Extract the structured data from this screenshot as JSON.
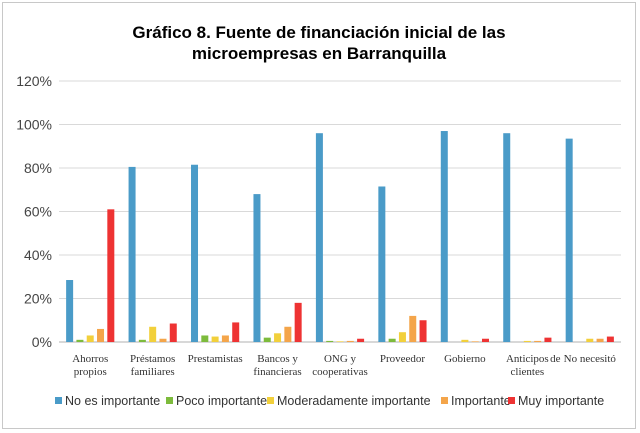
{
  "chart_data": {
    "type": "bar",
    "title_lines": [
      "Gráfico 8. Fuente de financiación inicial de las",
      "microempresas en Barranquilla"
    ],
    "categories": [
      [
        "Ahorros",
        "propios"
      ],
      [
        "Préstamos",
        "familiares"
      ],
      [
        "Prestamistas"
      ],
      [
        "Bancos y",
        "financieras"
      ],
      [
        "ONG y",
        "cooperativas"
      ],
      [
        "Proveedor"
      ],
      [
        "Gobierno"
      ],
      [
        "Anticipos",
        "clientes"
      ],
      [
        "No necesitó"
      ]
    ],
    "category_extra_label": {
      "index": 7,
      "text": "de"
    },
    "series": [
      {
        "name": "No es importante",
        "color": "#4a9bc8",
        "values": [
          28.5,
          80.5,
          81.5,
          68,
          96,
          71.5,
          97,
          96,
          93.5
        ]
      },
      {
        "name": "Poco importante",
        "color": "#7dbb3c",
        "values": [
          1,
          1,
          3,
          2,
          0.5,
          1.5,
          0,
          0,
          0
        ]
      },
      {
        "name": "Moderadamente importante",
        "color": "#f2d03b",
        "values": [
          3,
          7,
          2.5,
          4,
          0.3,
          4.5,
          1,
          0.5,
          1.5
        ]
      },
      {
        "name": "Importante",
        "color": "#f4a54a",
        "values": [
          6,
          1.5,
          3,
          7,
          0.5,
          12,
          0.3,
          0.5,
          1.5
        ]
      },
      {
        "name": "Muy importante",
        "color": "#ee3333",
        "values": [
          61,
          8.5,
          9,
          18,
          1.5,
          10,
          1.5,
          2,
          2.5
        ]
      }
    ],
    "ylim": [
      0,
      120
    ],
    "yticks": [
      "0%",
      "20%",
      "40%",
      "60%",
      "80%",
      "100%",
      "120%"
    ],
    "grid": true,
    "legend_position": "bottom"
  }
}
